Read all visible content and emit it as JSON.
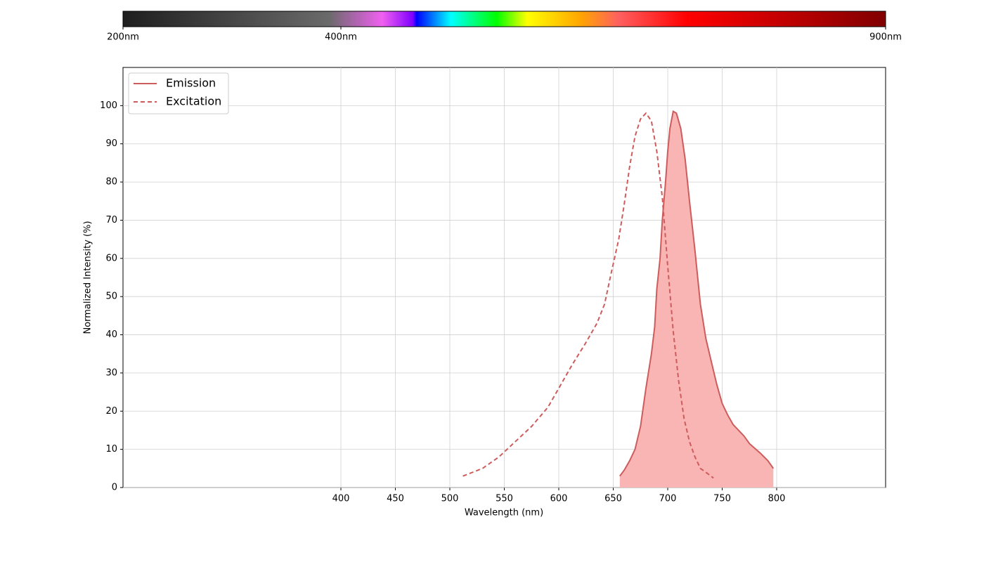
{
  "chart_data": {
    "type": "line",
    "colorbar": {
      "xlim": [
        200,
        900
      ],
      "xticks": [
        {
          "value": 200,
          "label": "200nm"
        },
        {
          "value": 400,
          "label": "400nm"
        },
        {
          "value": 900,
          "label": "900nm"
        }
      ]
    },
    "xlabel": "Wavelength (nm)",
    "ylabel": "Normalized Intensity (%)",
    "xlim": [
      200,
      900
    ],
    "xticks": [
      400,
      450,
      500,
      550,
      600,
      650,
      700,
      750,
      800
    ],
    "ylim": [
      0,
      110
    ],
    "yticks": [
      0,
      10,
      20,
      30,
      40,
      50,
      60,
      70,
      80,
      90,
      100
    ],
    "grid": true,
    "legend": "upper left",
    "series": [
      {
        "name": "Emission",
        "color": "#cd5c5c",
        "fill": "#f9b4b4",
        "dashed": false,
        "x": [
          656,
          660,
          665,
          670,
          675,
          680,
          685,
          688,
          690,
          693,
          695,
          698,
          700,
          702,
          705,
          708,
          712,
          716,
          720,
          725,
          730,
          735,
          740,
          745,
          750,
          755,
          760,
          770,
          775,
          785,
          792,
          797
        ],
        "values": [
          3,
          4.5,
          7,
          10,
          16,
          26,
          35,
          42,
          52,
          60,
          70,
          80,
          88,
          94,
          98.5,
          98,
          94,
          86,
          75,
          62,
          48,
          39,
          33,
          27,
          22,
          19,
          16.5,
          13.5,
          11.5,
          9,
          7,
          5
        ]
      },
      {
        "name": "Excitation",
        "color": "#cd5c5c",
        "dashed": true,
        "x": [
          512,
          530,
          545,
          560,
          575,
          590,
          600,
          612,
          625,
          635,
          642,
          648,
          655,
          660,
          665,
          670,
          675,
          680,
          685,
          690,
          695,
          700,
          705,
          710,
          715,
          720,
          725,
          730,
          735,
          742
        ],
        "values": [
          3,
          5,
          8,
          12,
          16,
          21,
          26,
          32,
          38,
          43,
          48,
          56,
          65,
          74,
          84,
          92,
          96.5,
          98,
          96,
          88,
          76,
          58,
          41,
          28,
          18,
          12,
          8,
          5,
          4,
          2.5
        ]
      }
    ]
  }
}
